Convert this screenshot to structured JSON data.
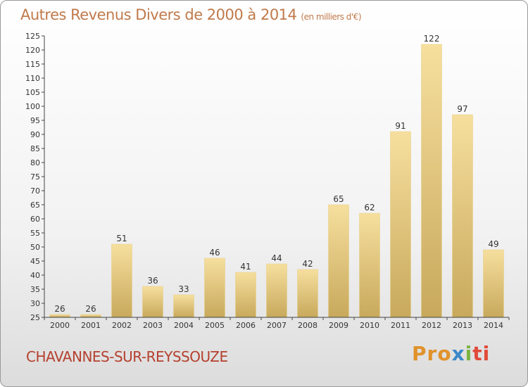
{
  "title": "Autres Revenus Divers de 2000 à 2014",
  "unit_label": "(en milliers d'€)",
  "city": "CHAVANNES-SUR-REYSSOUZE",
  "logo": {
    "part1": "Pro",
    "part2": "x",
    "part3": "i",
    "part4": "ti",
    "part5": ""
  },
  "colors": {
    "bar_light": "#f6df9e",
    "bar_dark": "#c8a95c",
    "title": "#c07a4b",
    "city": "#b5402e"
  },
  "chart_data": {
    "type": "bar",
    "categories": [
      "2000",
      "2001",
      "2002",
      "2003",
      "2004",
      "2005",
      "2006",
      "2007",
      "2008",
      "2009",
      "2010",
      "2011",
      "2012",
      "2013",
      "2014"
    ],
    "values": [
      26,
      26,
      51,
      36,
      33,
      46,
      41,
      44,
      42,
      65,
      62,
      91,
      122,
      97,
      49
    ],
    "ylim": [
      25,
      125
    ],
    "yticks": [
      25,
      30,
      35,
      40,
      45,
      50,
      55,
      60,
      65,
      70,
      75,
      80,
      85,
      90,
      95,
      100,
      105,
      110,
      115,
      120,
      125
    ],
    "grid": false,
    "xlabel": "",
    "ylabel": ""
  }
}
